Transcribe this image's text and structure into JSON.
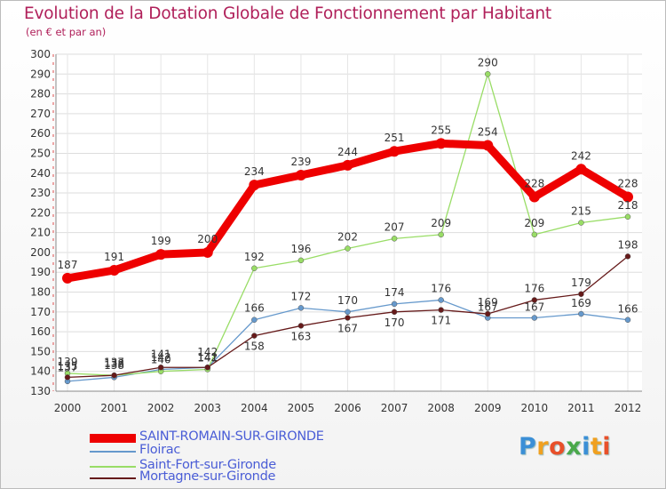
{
  "title": "Evolution de la Dotation Globale de Fonctionnement par Habitant",
  "subtitle": "(en € et par an)",
  "chart_data": {
    "type": "line",
    "title": "Evolution de la Dotation Globale de Fonctionnement par Habitant",
    "subtitle": "(en € et par an)",
    "xlabel": "",
    "ylabel": "",
    "ylim": [
      130,
      300
    ],
    "y_ticks": [
      130,
      140,
      150,
      160,
      170,
      180,
      190,
      200,
      210,
      220,
      230,
      240,
      250,
      260,
      270,
      280,
      290,
      300
    ],
    "grid": true,
    "x": [
      "2000",
      "2001",
      "2002",
      "2003",
      "2004",
      "2005",
      "2006",
      "2007",
      "2008",
      "2009",
      "2010",
      "2011",
      "2012"
    ],
    "series": [
      {
        "name": "SAINT-ROMAIN-SUR-GIRONDE",
        "color": "#ee0000",
        "values": [
          187,
          191,
          199,
          200,
          234,
          239,
          244,
          251,
          255,
          254,
          228,
          242,
          228
        ]
      },
      {
        "name": "Floirac",
        "color": "#6699cc",
        "values": [
          135,
          137,
          141,
          142,
          166,
          172,
          170,
          174,
          176,
          167,
          167,
          169,
          166
        ]
      },
      {
        "name": "Saint-Fort-sur-Gironde",
        "color": "#99dd66",
        "values": [
          139,
          138,
          140,
          141,
          192,
          196,
          202,
          207,
          209,
          290,
          209,
          215,
          218
        ]
      },
      {
        "name": "Mortagne-sur-Gironde",
        "color": "#661a1a",
        "values": [
          137,
          138,
          142,
          142,
          158,
          163,
          167,
          170,
          171,
          169,
          176,
          179,
          198
        ]
      }
    ],
    "value_labels": [
      [
        "187",
        "191",
        "199",
        "200",
        "234",
        "239",
        "244",
        "251",
        "255",
        "254",
        "228",
        "242",
        "228"
      ],
      [
        "135",
        "137",
        "141",
        "142",
        "166",
        "172",
        "170",
        "174",
        "176",
        "167",
        "167",
        "169",
        "166"
      ],
      [
        "139",
        "138",
        "140",
        "141",
        "192",
        "196",
        "202",
        "207",
        "209",
        "290",
        "209",
        "215",
        "218"
      ],
      [
        "137",
        "138",
        "142",
        "142",
        "158",
        "163",
        "167",
        "170",
        "171",
        "169",
        "176",
        "179",
        "198"
      ]
    ],
    "legend_position": "bottom-left"
  },
  "legend": [
    {
      "label": "SAINT-ROMAIN-SUR-GIRONDE",
      "color": "#ee0000"
    },
    {
      "label": "Floirac",
      "color": "#6699cc"
    },
    {
      "label": "Saint-Fort-sur-Gironde",
      "color": "#99dd66"
    },
    {
      "label": "Mortagne-sur-Gironde",
      "color": "#661a1a"
    }
  ],
  "logo": {
    "text": "Proxiti",
    "letters": [
      "P",
      "r",
      "o",
      "x",
      "i",
      "t",
      "i"
    ],
    "colors": [
      "#3b8fd6",
      "#f0a020",
      "#e8502a",
      "#4aa84a",
      "#3b8fd6",
      "#f0a020",
      "#e8502a"
    ]
  }
}
